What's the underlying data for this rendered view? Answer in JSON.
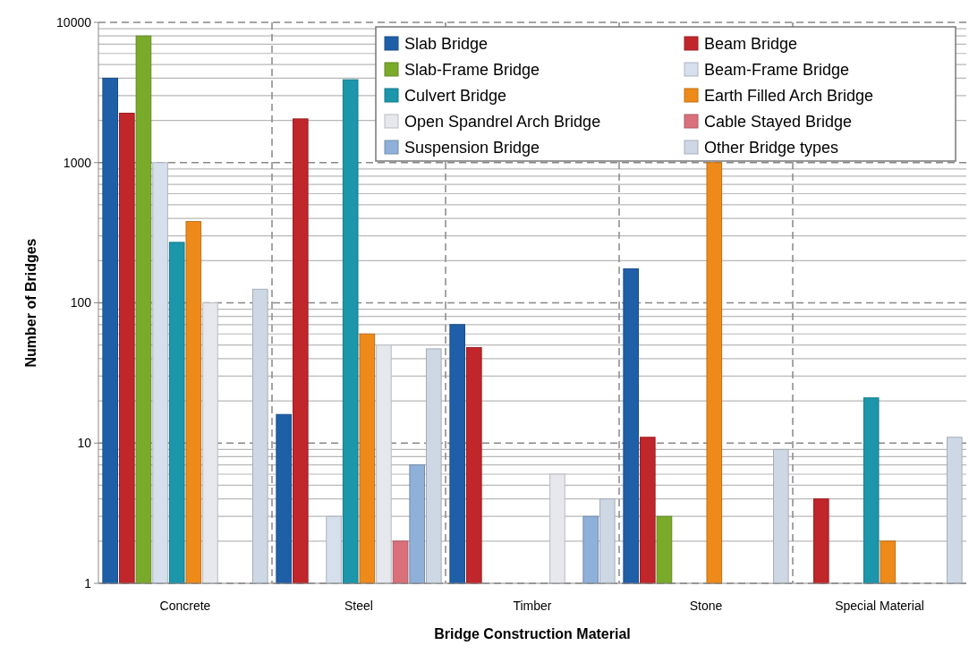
{
  "chart_data": {
    "type": "bar",
    "xlabel": "Bridge Construction Material",
    "ylabel": "Number of Bridges",
    "categories": [
      "Concrete",
      "Steel",
      "Timber",
      "Stone",
      "Special Material"
    ],
    "log": true,
    "ylim": [
      1,
      10000
    ],
    "yticks": [
      1,
      10,
      100,
      1000,
      10000
    ],
    "grid": true,
    "legend": "top right",
    "series": [
      {
        "name": "Slab Bridge",
        "color": "#1f5fa8",
        "values": [
          4000,
          16,
          70,
          175,
          null
        ]
      },
      {
        "name": "Beam Bridge",
        "color": "#c0262a",
        "values": [
          2250,
          2050,
          48,
          11,
          4
        ]
      },
      {
        "name": "Slab-Frame Bridge",
        "color": "#7aaa2a",
        "values": [
          8000,
          null,
          null,
          3,
          null
        ]
      },
      {
        "name": "Beam-Frame Bridge",
        "color": "#d6e0ec",
        "values": [
          1000,
          3,
          null,
          null,
          null
        ]
      },
      {
        "name": "Culvert Bridge",
        "color": "#1b96ab",
        "values": [
          270,
          3900,
          null,
          null,
          21
        ]
      },
      {
        "name": "Earth Filled Arch Bridge",
        "color": "#ee8a1a",
        "values": [
          380,
          60,
          null,
          1000,
          2
        ]
      },
      {
        "name": "Open Spandrel Arch Bridge",
        "color": "#e6e8ee",
        "values": [
          100,
          50,
          6,
          null,
          null
        ]
      },
      {
        "name": "Cable Stayed Bridge",
        "color": "#d9707a",
        "values": [
          null,
          2,
          null,
          null,
          null
        ]
      },
      {
        "name": "Suspension Bridge",
        "color": "#8fb0d8",
        "values": [
          null,
          7,
          3,
          null,
          null
        ]
      },
      {
        "name": "Other Bridge types",
        "color": "#cdd8e4",
        "values": [
          125,
          47,
          4,
          9,
          11
        ]
      }
    ]
  }
}
